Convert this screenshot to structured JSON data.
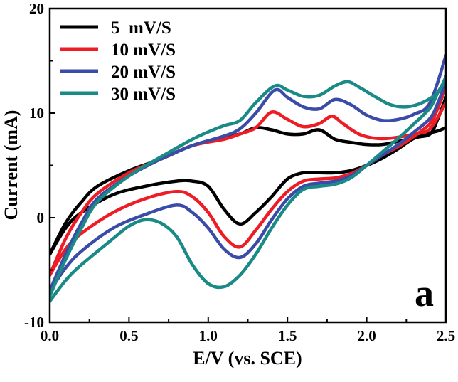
{
  "chart_data": {
    "type": "line",
    "title": "",
    "xlabel": "E/V (vs. SCE)",
    "ylabel": "Current (mA)",
    "xlim": [
      0.0,
      2.5
    ],
    "ylim": [
      -10,
      20
    ],
    "x_ticks": [
      0.0,
      0.5,
      1.0,
      1.5,
      2.0,
      2.5
    ],
    "x_tick_labels": [
      "0.0",
      "0.5",
      "1.0",
      "1.5",
      "2.0",
      "2.5"
    ],
    "y_ticks": [
      -10,
      0,
      10,
      20
    ],
    "y_tick_labels": [
      "-10",
      "0",
      "10",
      "20"
    ],
    "grid": false,
    "legend_position": "top-left",
    "panel_label": "a",
    "series": [
      {
        "name": "5  mV/S",
        "color": "#000000",
        "anodic": [
          [
            0.0,
            -3.5
          ],
          [
            0.1,
            -0.5
          ],
          [
            0.2,
            1.5
          ],
          [
            0.3,
            3.0
          ],
          [
            0.5,
            4.5
          ],
          [
            0.7,
            5.6
          ],
          [
            0.9,
            6.9
          ],
          [
            1.1,
            7.7
          ],
          [
            1.2,
            8.0
          ],
          [
            1.3,
            8.6
          ],
          [
            1.4,
            8.4
          ],
          [
            1.5,
            8.0
          ],
          [
            1.6,
            8.0
          ],
          [
            1.7,
            8.4
          ],
          [
            1.8,
            7.5
          ],
          [
            1.9,
            7.2
          ],
          [
            2.0,
            7.0
          ],
          [
            2.1,
            7.0
          ],
          [
            2.2,
            7.3
          ],
          [
            2.3,
            7.6
          ],
          [
            2.4,
            8.1
          ],
          [
            2.45,
            8.3
          ],
          [
            2.5,
            8.6
          ]
        ],
        "cathodic": [
          [
            2.5,
            11.5
          ],
          [
            2.45,
            9.5
          ],
          [
            2.4,
            8.0
          ],
          [
            2.3,
            7.6
          ],
          [
            2.2,
            6.6
          ],
          [
            2.1,
            5.7
          ],
          [
            2.0,
            5.0
          ],
          [
            1.9,
            4.5
          ],
          [
            1.8,
            4.3
          ],
          [
            1.7,
            4.3
          ],
          [
            1.6,
            4.3
          ],
          [
            1.5,
            3.7
          ],
          [
            1.4,
            2.0
          ],
          [
            1.3,
            0.5
          ],
          [
            1.2,
            -0.6
          ],
          [
            1.1,
            0.8
          ],
          [
            1.0,
            3.0
          ],
          [
            0.9,
            3.5
          ],
          [
            0.8,
            3.5
          ],
          [
            0.6,
            3.0
          ],
          [
            0.4,
            2.2
          ],
          [
            0.2,
            0.5
          ],
          [
            0.1,
            -1.0
          ],
          [
            0.0,
            -3.5
          ]
        ]
      },
      {
        "name": "10 mV/S",
        "color": "#ee1c24",
        "anodic": [
          [
            0.0,
            -5.5
          ],
          [
            0.1,
            -2.0
          ],
          [
            0.2,
            0.5
          ],
          [
            0.3,
            2.3
          ],
          [
            0.5,
            4.3
          ],
          [
            0.7,
            5.6
          ],
          [
            0.9,
            6.9
          ],
          [
            1.1,
            7.5
          ],
          [
            1.2,
            8.0
          ],
          [
            1.3,
            8.6
          ],
          [
            1.4,
            10.1
          ],
          [
            1.5,
            9.4
          ],
          [
            1.6,
            8.7
          ],
          [
            1.7,
            9.0
          ],
          [
            1.78,
            9.7
          ],
          [
            1.85,
            9.0
          ],
          [
            1.95,
            8.0
          ],
          [
            2.05,
            7.6
          ],
          [
            2.15,
            7.6
          ],
          [
            2.3,
            8.0
          ],
          [
            2.4,
            8.5
          ],
          [
            2.5,
            11.0
          ]
        ],
        "cathodic": [
          [
            2.5,
            12.5
          ],
          [
            2.45,
            10.5
          ],
          [
            2.4,
            9.0
          ],
          [
            2.3,
            7.8
          ],
          [
            2.2,
            6.8
          ],
          [
            2.1,
            6.0
          ],
          [
            2.0,
            5.0
          ],
          [
            1.9,
            4.2
          ],
          [
            1.8,
            3.8
          ],
          [
            1.7,
            3.7
          ],
          [
            1.6,
            3.5
          ],
          [
            1.5,
            2.5
          ],
          [
            1.4,
            0.8
          ],
          [
            1.3,
            -1.2
          ],
          [
            1.2,
            -2.8
          ],
          [
            1.1,
            -1.8
          ],
          [
            1.0,
            0.5
          ],
          [
            0.9,
            2.0
          ],
          [
            0.8,
            2.5
          ],
          [
            0.6,
            1.8
          ],
          [
            0.4,
            0.5
          ],
          [
            0.2,
            -1.5
          ],
          [
            0.1,
            -3.0
          ],
          [
            0.0,
            -5.5
          ]
        ]
      },
      {
        "name": "20 mV/S",
        "color": "#3b4ba8",
        "anodic": [
          [
            0.0,
            -7.0
          ],
          [
            0.1,
            -3.5
          ],
          [
            0.2,
            -0.5
          ],
          [
            0.3,
            1.8
          ],
          [
            0.5,
            4.0
          ],
          [
            0.7,
            5.6
          ],
          [
            0.9,
            6.9
          ],
          [
            1.1,
            7.8
          ],
          [
            1.2,
            8.5
          ],
          [
            1.3,
            10.0
          ],
          [
            1.42,
            12.2
          ],
          [
            1.5,
            11.5
          ],
          [
            1.6,
            10.6
          ],
          [
            1.7,
            10.4
          ],
          [
            1.8,
            11.3
          ],
          [
            1.9,
            10.8
          ],
          [
            2.0,
            9.8
          ],
          [
            2.1,
            9.3
          ],
          [
            2.2,
            9.4
          ],
          [
            2.3,
            9.9
          ],
          [
            2.4,
            11.0
          ],
          [
            2.5,
            15.5
          ]
        ],
        "cathodic": [
          [
            2.5,
            13.0
          ],
          [
            2.45,
            11.0
          ],
          [
            2.4,
            9.5
          ],
          [
            2.3,
            8.2
          ],
          [
            2.2,
            7.0
          ],
          [
            2.1,
            6.0
          ],
          [
            2.0,
            5.0
          ],
          [
            1.9,
            4.0
          ],
          [
            1.8,
            3.5
          ],
          [
            1.7,
            3.3
          ],
          [
            1.6,
            3.0
          ],
          [
            1.5,
            1.8
          ],
          [
            1.4,
            -0.2
          ],
          [
            1.3,
            -2.5
          ],
          [
            1.2,
            -3.8
          ],
          [
            1.1,
            -3.0
          ],
          [
            1.0,
            -1.0
          ],
          [
            0.9,
            0.5
          ],
          [
            0.8,
            1.2
          ],
          [
            0.6,
            0.3
          ],
          [
            0.4,
            -1.0
          ],
          [
            0.2,
            -3.2
          ],
          [
            0.1,
            -4.8
          ],
          [
            0.0,
            -7.0
          ]
        ]
      },
      {
        "name": "30 mV/S",
        "color": "#1a8a86",
        "anodic": [
          [
            0.0,
            -7.5
          ],
          [
            0.1,
            -4.0
          ],
          [
            0.2,
            -1.0
          ],
          [
            0.3,
            1.5
          ],
          [
            0.5,
            4.0
          ],
          [
            0.7,
            5.8
          ],
          [
            0.9,
            7.5
          ],
          [
            1.0,
            8.2
          ],
          [
            1.1,
            8.8
          ],
          [
            1.2,
            9.3
          ],
          [
            1.3,
            11.0
          ],
          [
            1.42,
            12.6
          ],
          [
            1.5,
            12.2
          ],
          [
            1.6,
            11.6
          ],
          [
            1.7,
            11.7
          ],
          [
            1.8,
            12.6
          ],
          [
            1.88,
            13.0
          ],
          [
            1.95,
            12.5
          ],
          [
            2.05,
            11.6
          ],
          [
            2.15,
            10.8
          ],
          [
            2.25,
            10.6
          ],
          [
            2.35,
            11.0
          ],
          [
            2.45,
            12.0
          ],
          [
            2.5,
            13.5
          ]
        ],
        "cathodic": [
          [
            2.5,
            13.3
          ],
          [
            2.45,
            12.0
          ],
          [
            2.4,
            10.5
          ],
          [
            2.3,
            9.0
          ],
          [
            2.2,
            7.6
          ],
          [
            2.1,
            6.3
          ],
          [
            2.0,
            5.0
          ],
          [
            1.9,
            3.8
          ],
          [
            1.8,
            3.2
          ],
          [
            1.7,
            3.0
          ],
          [
            1.6,
            2.7
          ],
          [
            1.5,
            1.2
          ],
          [
            1.4,
            -1.0
          ],
          [
            1.3,
            -3.5
          ],
          [
            1.2,
            -5.5
          ],
          [
            1.1,
            -6.6
          ],
          [
            1.0,
            -6.3
          ],
          [
            0.9,
            -4.5
          ],
          [
            0.8,
            -1.8
          ],
          [
            0.7,
            -0.5
          ],
          [
            0.6,
            -0.2
          ],
          [
            0.5,
            -0.8
          ],
          [
            0.4,
            -2.0
          ],
          [
            0.2,
            -4.5
          ],
          [
            0.1,
            -6.0
          ],
          [
            0.0,
            -8.0
          ]
        ]
      }
    ]
  }
}
